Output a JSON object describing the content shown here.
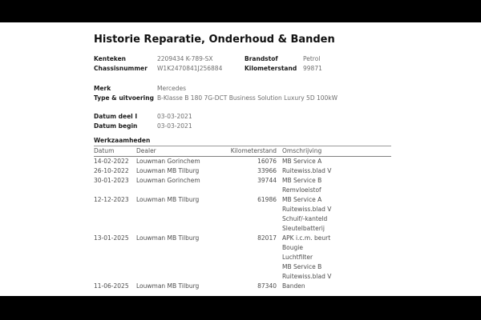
{
  "page": {
    "title": "Historie Reparatie, Onderhoud & Banden"
  },
  "info": {
    "kenteken": {
      "label": "Kenteken",
      "value": "2209434 K-789-SX"
    },
    "chassisnummer": {
      "label": "Chassisnummer",
      "value": "W1K2470841J256884"
    },
    "brandstof": {
      "label": "Brandstof",
      "value": "Petrol"
    },
    "kilometerstand": {
      "label": "Kilometerstand",
      "value": "99871"
    },
    "merk": {
      "label": "Merk",
      "value": "Mercedes"
    },
    "type_uitvoering": {
      "label": "Type & uitvoering",
      "value": "B-Klasse B 180 7G-DCT Business Solution Luxury 5D 100kW"
    },
    "datum_deel_1": {
      "label": "Datum deel I",
      "value": "03-03-2021"
    },
    "datum_begin": {
      "label": "Datum begin",
      "value": "03-03-2021"
    }
  },
  "werkzaamheden": {
    "section_title": "Werkzaamheden",
    "columns": {
      "datum": "Datum",
      "dealer": "Dealer",
      "kilometerstand": "Kilometerstand",
      "omschrijving": "Omschrijving"
    },
    "rows": [
      {
        "datum": "14-02-2022",
        "dealer": "Louwman Gorinchem",
        "kilometerstand": "16076",
        "omschrijving": [
          "MB Service A"
        ]
      },
      {
        "datum": "26-10-2022",
        "dealer": "Louwman MB Tilburg",
        "kilometerstand": "33966",
        "omschrijving": [
          "Ruitewiss.blad V"
        ]
      },
      {
        "datum": "30-01-2023",
        "dealer": "Louwman Gorinchem",
        "kilometerstand": "39744",
        "omschrijving": [
          "MB Service B",
          "Remvloeistof"
        ]
      },
      {
        "datum": "12-12-2023",
        "dealer": "Louwman MB Tilburg",
        "kilometerstand": "61986",
        "omschrijving": [
          "MB Service A",
          "Ruitewiss.blad V",
          "Schuif/-kanteld",
          "Sleutelbatterij"
        ]
      },
      {
        "datum": "13-01-2025",
        "dealer": "Louwman MB Tilburg",
        "kilometerstand": "82017",
        "omschrijving": [
          "APK i.c.m. beurt",
          "Bougie",
          "Luchtfilter",
          "MB Service B",
          "Ruitewiss.blad V"
        ]
      },
      {
        "datum": "11-06-2025",
        "dealer": "Louwman MB Tilburg",
        "kilometerstand": "87340",
        "omschrijving": [
          "Banden"
        ]
      }
    ]
  },
  "colors": {
    "letterbox": "#000000",
    "page_background": "#ffffff",
    "label_text": "#1a1a1a",
    "value_text": "#6e6e6e",
    "table_text": "#4d4d4d",
    "rule": "#808080"
  }
}
